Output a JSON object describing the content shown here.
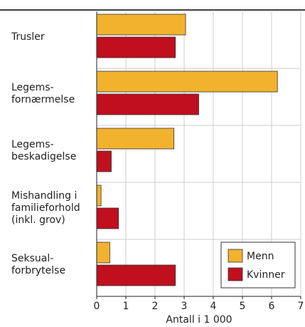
{
  "chart_data": {
    "type": "hbar",
    "categories": [
      "Trusler",
      "Legems-\nfornærmelse",
      "Legems-\nbeskadigelse",
      "Mishandling i\nfamilieforhold\n(inkl. grov)",
      "Seksual-\nforbrytelse"
    ],
    "series": [
      {
        "name": "Menn",
        "color": "#f2b22e",
        "values": [
          3.05,
          6.2,
          2.65,
          0.15,
          0.45
        ]
      },
      {
        "name": "Kvinner",
        "color": "#c00f1f",
        "values": [
          2.7,
          3.5,
          0.5,
          0.75,
          2.7
        ]
      }
    ],
    "xlabel": "Antall i 1 000",
    "xlim": [
      0,
      7
    ],
    "xticks": [
      0,
      1,
      2,
      3,
      4,
      5,
      6,
      7
    ],
    "grid": true,
    "legend": "lower right"
  }
}
